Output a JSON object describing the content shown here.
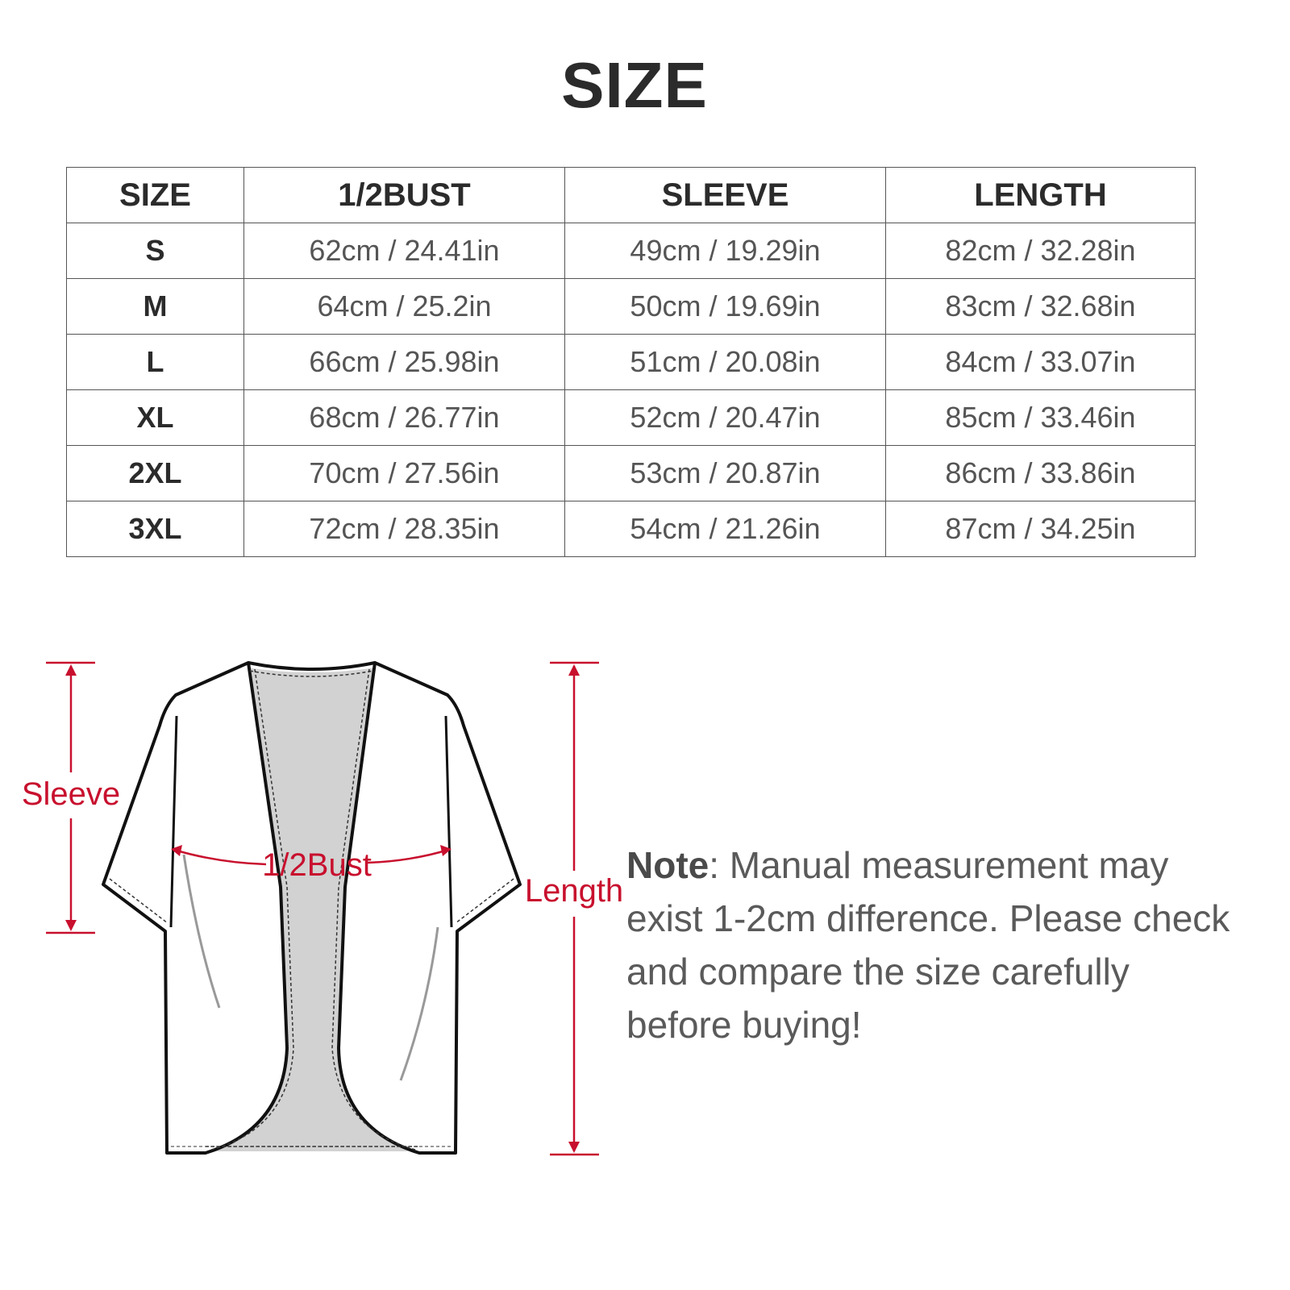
{
  "title": "SIZE",
  "table": {
    "headers": [
      "SIZE",
      "1/2BUST",
      "SLEEVE",
      "LENGTH"
    ],
    "rows": [
      [
        "S",
        "62cm / 24.41in",
        "49cm / 19.29in",
        "82cm / 32.28in"
      ],
      [
        "M",
        "64cm / 25.2in",
        "50cm / 19.69in",
        "83cm / 32.68in"
      ],
      [
        "L",
        "66cm / 25.98in",
        "51cm / 20.08in",
        "84cm / 33.07in"
      ],
      [
        "XL",
        "68cm / 26.77in",
        "52cm / 20.47in",
        "85cm / 33.46in"
      ],
      [
        "2XL",
        "70cm / 27.56in",
        "53cm / 20.87in",
        "86cm / 33.86in"
      ],
      [
        "3XL",
        "72cm / 28.35in",
        "54cm / 21.26in",
        "87cm / 34.25in"
      ]
    ]
  },
  "diagram": {
    "sleeve_label": "Sleeve",
    "bust_label": "1/2Bust",
    "length_label": "Length",
    "accent_color": "#c8102e",
    "garment": "kimono-cardigan"
  },
  "note": {
    "label": "Note",
    "text": ": Manual measurement may exist 1-2cm difference. Please check and compare the size carefully before buying!"
  }
}
